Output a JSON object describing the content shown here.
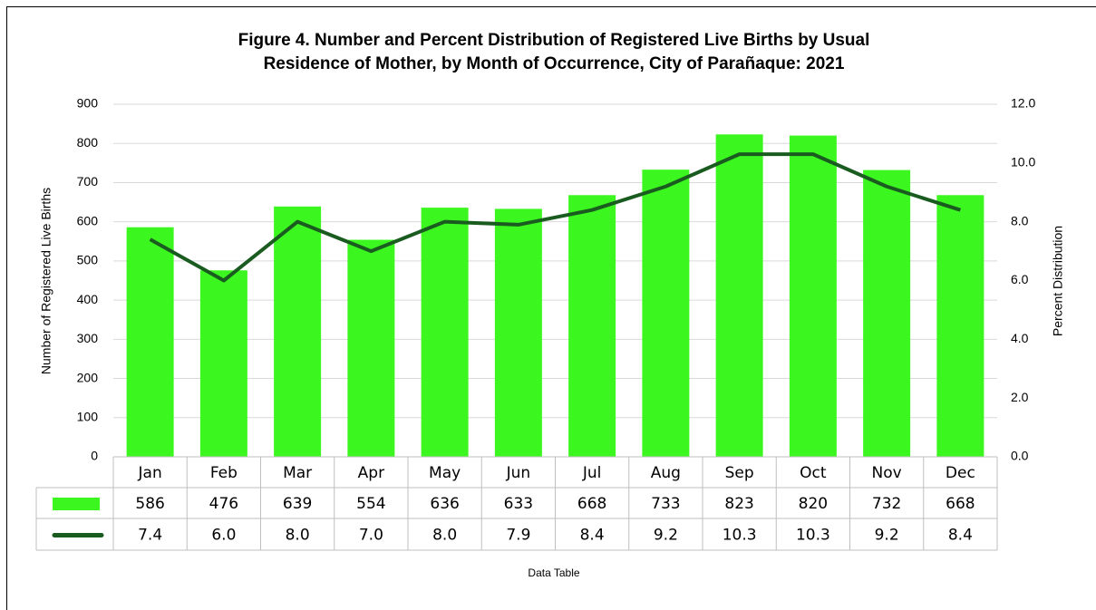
{
  "chart_data": {
    "type": "bar",
    "title": [
      "Figure 4. Number and Percent Distribution of Registered Live Births by Usual",
      "Residence of Mother, by Month of Occurrence, City of Parañaque: 2021"
    ],
    "ylabel": "Number of Registered Live Births",
    "y2label": "Percent Distribution",
    "xlabel": "Data Table",
    "categories": [
      "Jan",
      "Feb",
      "Mar",
      "Apr",
      "May",
      "Jun",
      "Jul",
      "Aug",
      "Sep",
      "Oct",
      "Nov",
      "Dec"
    ],
    "series": [
      {
        "type": "bar",
        "color": "#3cf71f",
        "values": [
          586,
          476,
          639,
          554,
          636,
          633,
          668,
          733,
          823,
          820,
          732,
          668
        ]
      },
      {
        "type": "line",
        "axis": "y2",
        "color": "#1a5c20",
        "values": [
          7.4,
          6.0,
          8.0,
          7.0,
          8.0,
          7.9,
          8.4,
          9.2,
          10.3,
          10.3,
          9.2,
          8.4
        ],
        "value_labels": [
          "7.4",
          "6.0",
          "8.0",
          "7.0",
          "8.0",
          "7.9",
          "8.4",
          "9.2",
          "10.3",
          "10.3",
          "9.2",
          "8.4"
        ]
      }
    ],
    "ylim": [
      0,
      900
    ],
    "yticks": [
      0,
      100,
      200,
      300,
      400,
      500,
      600,
      700,
      800,
      900
    ],
    "y2lim": [
      0,
      12
    ],
    "y2ticks": [
      {
        "value": 0,
        "label": "0.0"
      },
      {
        "value": 2,
        "label": "2.0"
      },
      {
        "value": 4,
        "label": "4.0"
      },
      {
        "value": 6,
        "label": "6.0"
      },
      {
        "value": 8,
        "label": "8.0"
      },
      {
        "value": 10,
        "label": "10.0"
      },
      {
        "value": 12,
        "label": "12.0"
      }
    ],
    "grid": true,
    "data_table": true
  }
}
